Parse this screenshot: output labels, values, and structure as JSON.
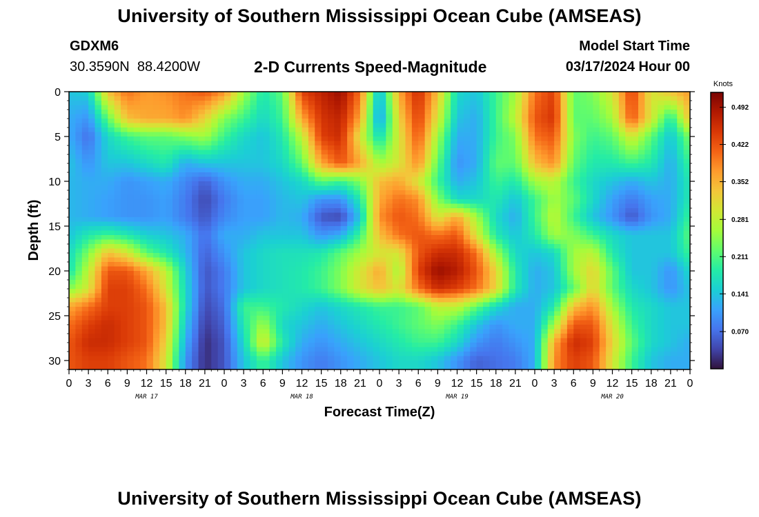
{
  "header": {
    "title": "University of Southern Mississippi Ocean Cube (AMSEAS)",
    "station": "GDXM6",
    "coordinates": "30.3590N  88.4200W",
    "model_start_label": "Model Start Time",
    "model_start_value": "03/17/2024 Hour 00"
  },
  "footer": {
    "title": "University of Southern Mississippi Ocean Cube (AMSEAS)"
  },
  "colors": {
    "colormap": [
      "#30123b",
      "#4145ab",
      "#4675ed",
      "#39a2fc",
      "#1bcfd4",
      "#24eca6",
      "#61fc6c",
      "#a4fc3b",
      "#d1e834",
      "#f3c63a",
      "#fe9b2d",
      "#f36315",
      "#d93806",
      "#b11901",
      "#7a0402"
    ]
  },
  "chart_data": {
    "type": "heatmap",
    "title": "2-D Currents Speed-Magnitude",
    "xlabel": "Forecast Time(Z)",
    "ylabel": "Depth (ft)",
    "x_tick_labels": [
      "0",
      "3",
      "6",
      "9",
      "12",
      "15",
      "18",
      "21",
      "0",
      "3",
      "6",
      "9",
      "12",
      "15",
      "18",
      "21",
      "0",
      "3",
      "6",
      "9",
      "12",
      "15",
      "18",
      "21",
      "0",
      "3",
      "6",
      "9",
      "12",
      "15",
      "18",
      "21",
      "0"
    ],
    "date_labels": [
      "MAR 17",
      "MAR 18",
      "MAR 19",
      "MAR 20"
    ],
    "y_ticks": [
      0,
      5,
      10,
      15,
      20,
      25,
      30
    ],
    "ylim": [
      0,
      31
    ],
    "xlim_hours": [
      0,
      96
    ],
    "colorbar": {
      "label": "Knots",
      "ticks": [
        0.07,
        0.141,
        0.211,
        0.281,
        0.352,
        0.422,
        0.492
      ],
      "tick_labels": [
        "0.070",
        "0.141",
        "0.211",
        "0.281",
        "0.352",
        "0.422",
        "0.492"
      ],
      "range": [
        0,
        0.52
      ]
    },
    "depths_ft": [
      0,
      3,
      5,
      8,
      10,
      12,
      14,
      16,
      18,
      20,
      22,
      24,
      26,
      28,
      30
    ],
    "times_hr": [
      0,
      3,
      6,
      9,
      12,
      15,
      18,
      21,
      24,
      27,
      30,
      33,
      36,
      39,
      42,
      45,
      48,
      51,
      54,
      57,
      60,
      63,
      66,
      69,
      72,
      75,
      78,
      81,
      84,
      87,
      90,
      93,
      96
    ],
    "values": [
      [
        0.14,
        0.15,
        0.34,
        0.4,
        0.37,
        0.38,
        0.4,
        0.42,
        0.38,
        0.26,
        0.18,
        0.22,
        0.44,
        0.47,
        0.5,
        0.4,
        0.12,
        0.36,
        0.46,
        0.34,
        0.16,
        0.14,
        0.2,
        0.26,
        0.4,
        0.44,
        0.22,
        0.24,
        0.3,
        0.44,
        0.3,
        0.34,
        0.37
      ],
      [
        0.12,
        0.1,
        0.22,
        0.34,
        0.36,
        0.36,
        0.38,
        0.32,
        0.24,
        0.2,
        0.16,
        0.2,
        0.36,
        0.45,
        0.47,
        0.36,
        0.1,
        0.32,
        0.44,
        0.3,
        0.14,
        0.12,
        0.2,
        0.28,
        0.42,
        0.45,
        0.22,
        0.22,
        0.26,
        0.42,
        0.3,
        0.18,
        0.34
      ],
      [
        0.12,
        0.07,
        0.16,
        0.2,
        0.22,
        0.22,
        0.24,
        0.26,
        0.2,
        0.16,
        0.14,
        0.18,
        0.28,
        0.44,
        0.46,
        0.3,
        0.16,
        0.3,
        0.42,
        0.26,
        0.12,
        0.12,
        0.2,
        0.24,
        0.4,
        0.42,
        0.24,
        0.2,
        0.22,
        0.3,
        0.22,
        0.14,
        0.24
      ],
      [
        0.14,
        0.1,
        0.14,
        0.14,
        0.16,
        0.18,
        0.12,
        0.14,
        0.14,
        0.14,
        0.14,
        0.16,
        0.22,
        0.36,
        0.42,
        0.36,
        0.26,
        0.3,
        0.38,
        0.22,
        0.1,
        0.12,
        0.22,
        0.22,
        0.34,
        0.38,
        0.22,
        0.18,
        0.18,
        0.2,
        0.18,
        0.12,
        0.2
      ],
      [
        0.13,
        0.12,
        0.12,
        0.1,
        0.11,
        0.12,
        0.09,
        0.06,
        0.1,
        0.12,
        0.12,
        0.14,
        0.16,
        0.22,
        0.2,
        0.24,
        0.34,
        0.36,
        0.3,
        0.2,
        0.12,
        0.14,
        0.2,
        0.18,
        0.26,
        0.28,
        0.2,
        0.16,
        0.14,
        0.12,
        0.14,
        0.12,
        0.18
      ],
      [
        0.13,
        0.12,
        0.11,
        0.1,
        0.1,
        0.11,
        0.08,
        0.04,
        0.08,
        0.11,
        0.11,
        0.13,
        0.14,
        0.1,
        0.1,
        0.18,
        0.36,
        0.4,
        0.38,
        0.24,
        0.16,
        0.16,
        0.18,
        0.14,
        0.2,
        0.26,
        0.22,
        0.16,
        0.11,
        0.08,
        0.11,
        0.12,
        0.18
      ],
      [
        0.13,
        0.12,
        0.11,
        0.1,
        0.1,
        0.11,
        0.08,
        0.05,
        0.09,
        0.11,
        0.11,
        0.13,
        0.12,
        0.05,
        0.04,
        0.14,
        0.38,
        0.42,
        0.4,
        0.3,
        0.36,
        0.26,
        0.16,
        0.12,
        0.2,
        0.28,
        0.2,
        0.14,
        0.1,
        0.05,
        0.1,
        0.12,
        0.2
      ],
      [
        0.14,
        0.18,
        0.2,
        0.18,
        0.15,
        0.14,
        0.12,
        0.07,
        0.12,
        0.12,
        0.14,
        0.14,
        0.14,
        0.1,
        0.12,
        0.2,
        0.34,
        0.4,
        0.42,
        0.4,
        0.42,
        0.3,
        0.18,
        0.14,
        0.18,
        0.26,
        0.24,
        0.2,
        0.16,
        0.14,
        0.14,
        0.14,
        0.22
      ],
      [
        0.16,
        0.24,
        0.34,
        0.3,
        0.22,
        0.18,
        0.13,
        0.06,
        0.1,
        0.14,
        0.16,
        0.17,
        0.17,
        0.18,
        0.22,
        0.26,
        0.3,
        0.3,
        0.42,
        0.46,
        0.46,
        0.4,
        0.26,
        0.16,
        0.14,
        0.16,
        0.26,
        0.28,
        0.18,
        0.14,
        0.14,
        0.14,
        0.2
      ],
      [
        0.17,
        0.28,
        0.42,
        0.42,
        0.36,
        0.28,
        0.15,
        0.05,
        0.08,
        0.14,
        0.16,
        0.17,
        0.18,
        0.2,
        0.24,
        0.3,
        0.36,
        0.26,
        0.44,
        0.5,
        0.48,
        0.42,
        0.32,
        0.18,
        0.12,
        0.14,
        0.26,
        0.32,
        0.22,
        0.14,
        0.14,
        0.1,
        0.16
      ],
      [
        0.24,
        0.3,
        0.44,
        0.44,
        0.4,
        0.3,
        0.16,
        0.05,
        0.08,
        0.14,
        0.16,
        0.17,
        0.18,
        0.2,
        0.24,
        0.3,
        0.34,
        0.3,
        0.4,
        0.46,
        0.44,
        0.4,
        0.32,
        0.18,
        0.12,
        0.14,
        0.22,
        0.32,
        0.22,
        0.16,
        0.14,
        0.1,
        0.14
      ],
      [
        0.36,
        0.4,
        0.44,
        0.44,
        0.42,
        0.34,
        0.16,
        0.04,
        0.07,
        0.2,
        0.2,
        0.18,
        0.16,
        0.14,
        0.16,
        0.18,
        0.2,
        0.2,
        0.22,
        0.28,
        0.28,
        0.22,
        0.16,
        0.12,
        0.12,
        0.18,
        0.34,
        0.38,
        0.26,
        0.18,
        0.16,
        0.14,
        0.14
      ],
      [
        0.4,
        0.44,
        0.46,
        0.44,
        0.42,
        0.34,
        0.14,
        0.03,
        0.06,
        0.18,
        0.26,
        0.16,
        0.14,
        0.12,
        0.14,
        0.16,
        0.18,
        0.2,
        0.22,
        0.24,
        0.2,
        0.14,
        0.1,
        0.12,
        0.12,
        0.26,
        0.42,
        0.42,
        0.3,
        0.2,
        0.16,
        0.14,
        0.14
      ],
      [
        0.42,
        0.46,
        0.46,
        0.44,
        0.42,
        0.32,
        0.12,
        0.02,
        0.05,
        0.16,
        0.3,
        0.18,
        0.12,
        0.1,
        0.12,
        0.14,
        0.16,
        0.18,
        0.2,
        0.2,
        0.16,
        0.1,
        0.08,
        0.1,
        0.12,
        0.36,
        0.46,
        0.44,
        0.32,
        0.22,
        0.16,
        0.14,
        0.12
      ],
      [
        0.42,
        0.44,
        0.44,
        0.42,
        0.4,
        0.3,
        0.1,
        0.02,
        0.05,
        0.14,
        0.2,
        0.14,
        0.1,
        0.08,
        0.1,
        0.12,
        0.14,
        0.16,
        0.16,
        0.14,
        0.1,
        0.06,
        0.07,
        0.08,
        0.12,
        0.38,
        0.44,
        0.42,
        0.3,
        0.2,
        0.14,
        0.12,
        0.12
      ]
    ]
  }
}
